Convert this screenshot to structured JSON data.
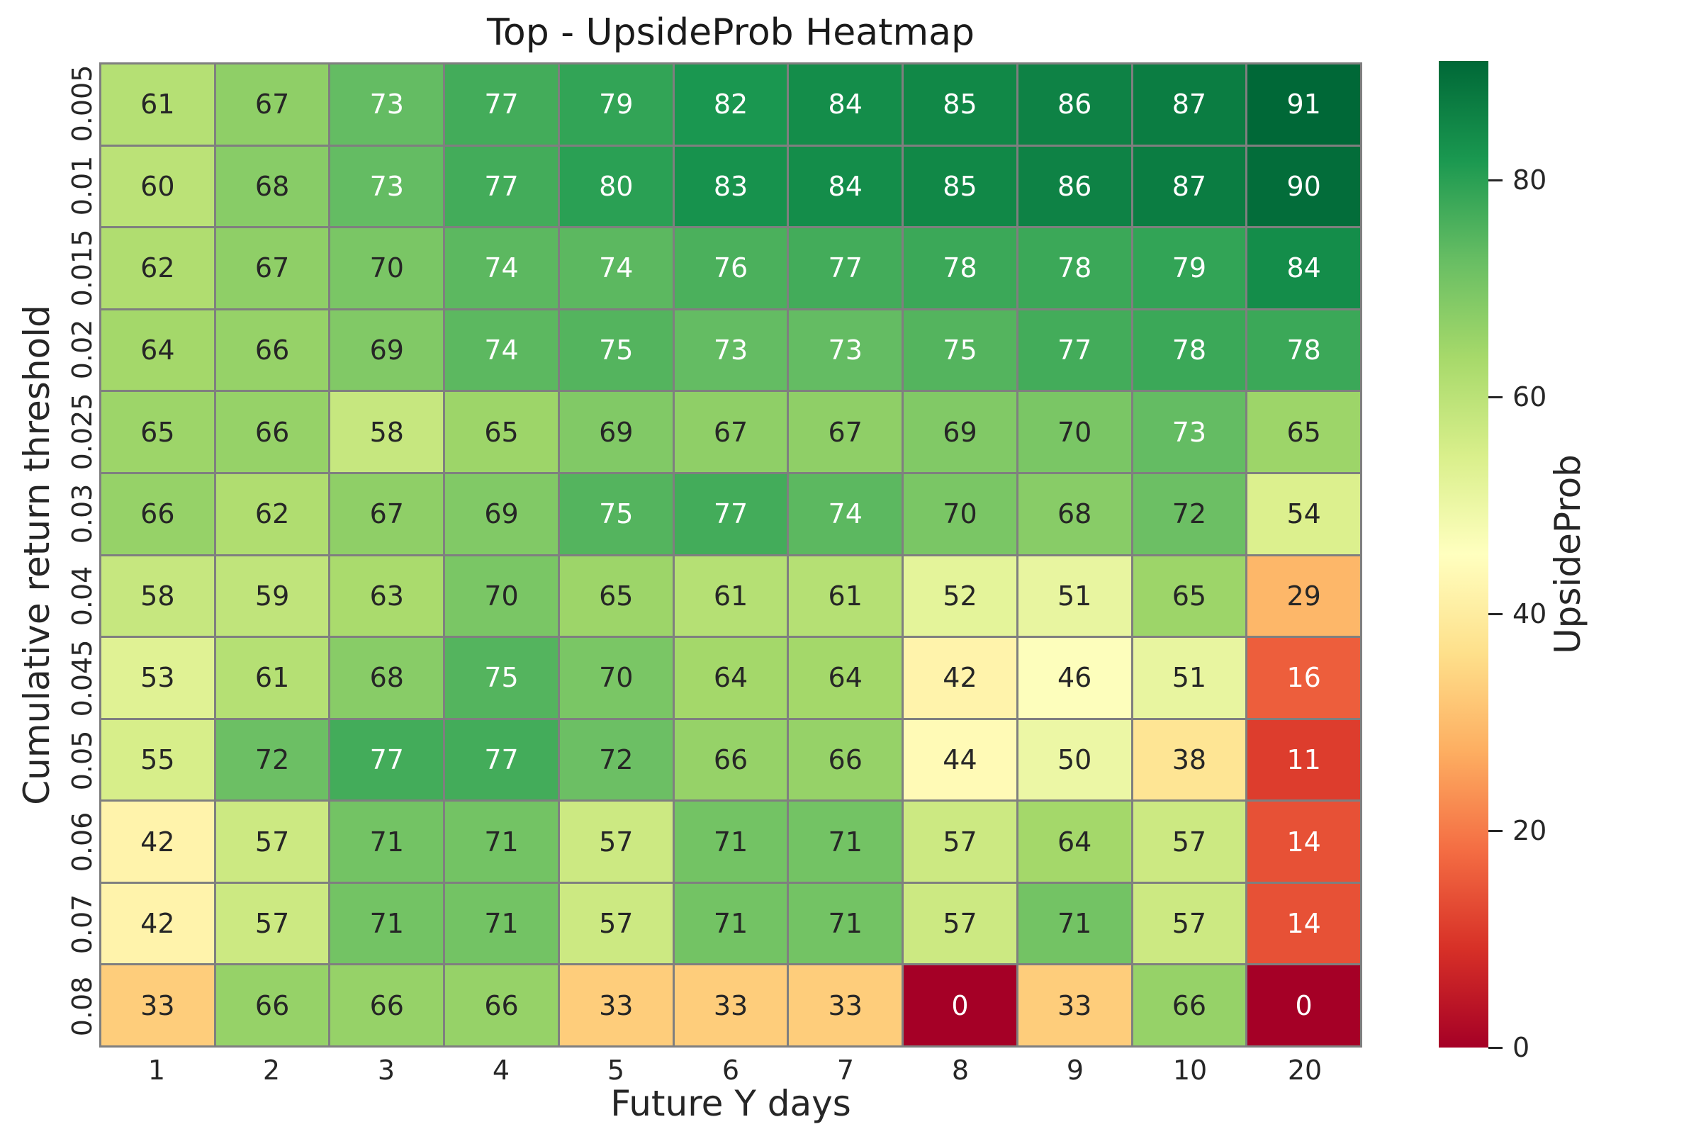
{
  "title": "Top - UpsideProb Heatmap",
  "chart_data": {
    "type": "heatmap",
    "title": "Top - UpsideProb Heatmap",
    "xlabel": "Future Y days",
    "ylabel": "Cumulative return threshold",
    "x_categories": [
      "1",
      "2",
      "3",
      "4",
      "5",
      "6",
      "7",
      "8",
      "9",
      "10",
      "20"
    ],
    "y_categories": [
      "0.005",
      "0.01",
      "0.015",
      "0.02",
      "0.025",
      "0.03",
      "0.04",
      "0.045",
      "0.05",
      "0.06",
      "0.07",
      "0.08"
    ],
    "values": [
      [
        61,
        67,
        73,
        77,
        79,
        82,
        84,
        85,
        86,
        87,
        91
      ],
      [
        60,
        68,
        73,
        77,
        80,
        83,
        84,
        85,
        86,
        87,
        90
      ],
      [
        62,
        67,
        70,
        74,
        74,
        76,
        77,
        78,
        78,
        79,
        84
      ],
      [
        64,
        66,
        69,
        74,
        75,
        73,
        73,
        75,
        77,
        78,
        78
      ],
      [
        65,
        66,
        58,
        65,
        69,
        67,
        67,
        69,
        70,
        73,
        65
      ],
      [
        66,
        62,
        67,
        69,
        75,
        77,
        74,
        70,
        68,
        72,
        54
      ],
      [
        58,
        59,
        63,
        70,
        65,
        61,
        61,
        52,
        51,
        65,
        29
      ],
      [
        53,
        61,
        68,
        75,
        70,
        64,
        64,
        42,
        46,
        51,
        16
      ],
      [
        55,
        72,
        77,
        77,
        72,
        66,
        66,
        44,
        50,
        38,
        11
      ],
      [
        42,
        57,
        71,
        71,
        57,
        71,
        71,
        57,
        64,
        57,
        14
      ],
      [
        42,
        57,
        71,
        71,
        57,
        71,
        71,
        57,
        71,
        57,
        14
      ],
      [
        33,
        66,
        66,
        66,
        33,
        33,
        33,
        0,
        33,
        66,
        0
      ]
    ],
    "colorbar": {
      "label": "UpsideProb",
      "ticks": [
        0,
        20,
        40,
        60,
        80
      ],
      "vmin": 0,
      "vmax": 91
    },
    "colormap": {
      "name": "RdYlGn",
      "stops": [
        "#a50026",
        "#d73027",
        "#f46d43",
        "#fdae61",
        "#fee08b",
        "#ffffbf",
        "#d9ef8b",
        "#a6d96a",
        "#66bd63",
        "#1a9850",
        "#006837"
      ]
    },
    "grid_color": "#7f7f7f",
    "annot_color_dark": "#262626",
    "annot_color_light": "#ffffff",
    "legend_position": "right",
    "grid": "cell-borders"
  }
}
